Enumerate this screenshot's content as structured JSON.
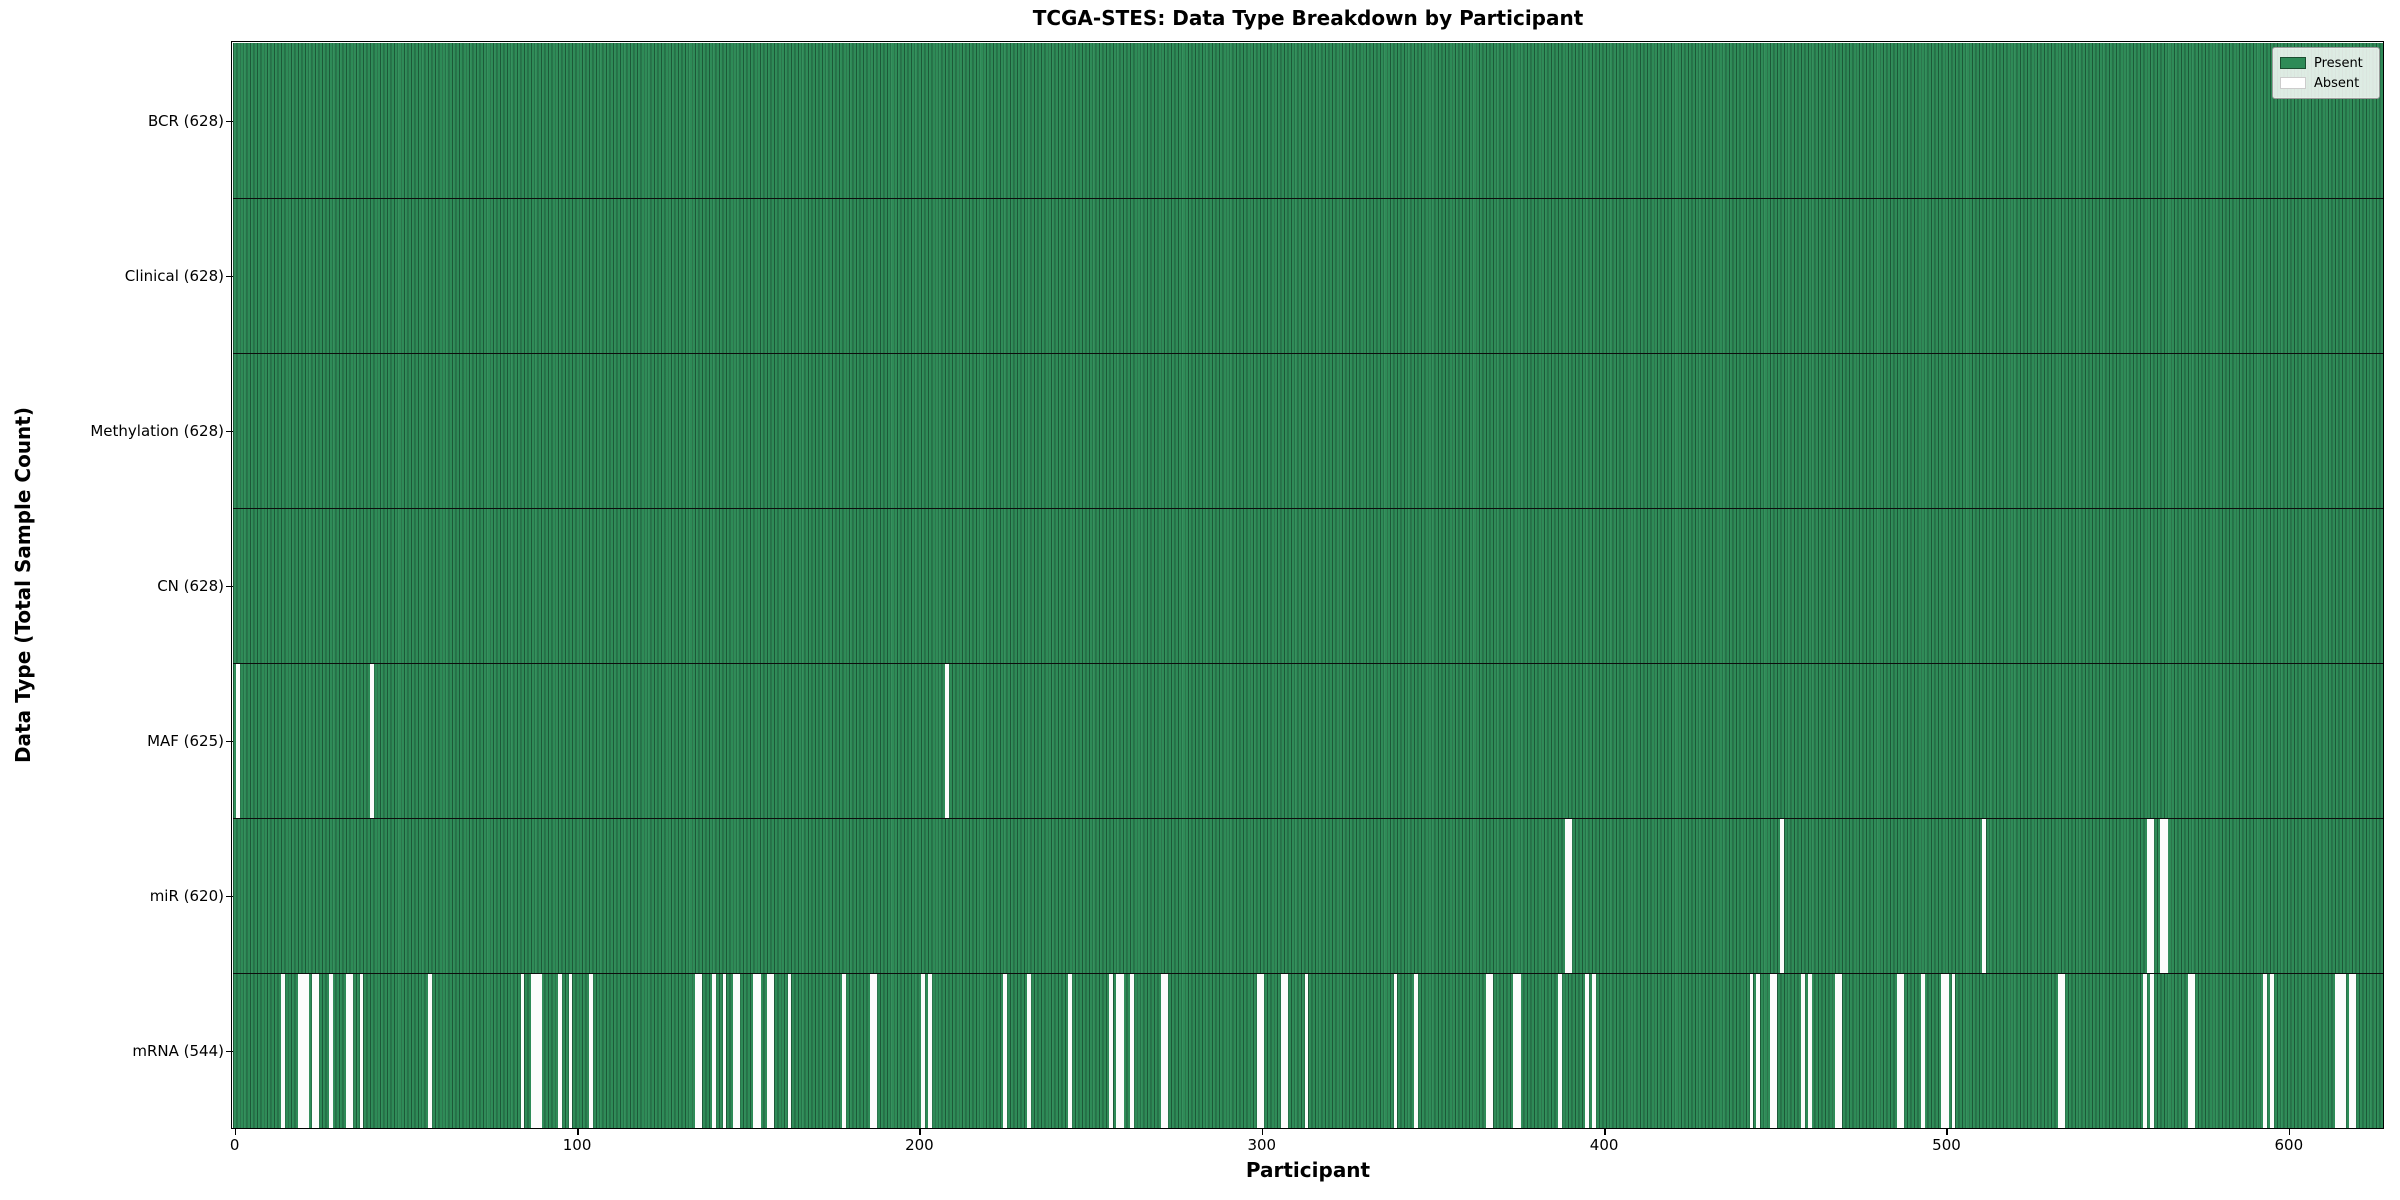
{
  "title": "TCGA-STES: Data Type Breakdown by Participant",
  "chart_data": {
    "type": "heatmap",
    "title": "TCGA-STES: Data Type Breakdown by Participant",
    "xlabel": "Participant",
    "ylabel": "Data Type (Total Sample Count)",
    "x_ticks": [
      0,
      100,
      200,
      300,
      400,
      500,
      600
    ],
    "x_range": [
      0,
      628
    ],
    "n_participants": 628,
    "grid": false,
    "legend_position": "upper right",
    "legend": [
      {
        "label": "Present",
        "color": "#2e8b57",
        "edge": "#1b4d30"
      },
      {
        "label": "Absent",
        "color": "#ffffff",
        "edge": "#cccccc"
      }
    ],
    "colors": {
      "present": "#2e8b57",
      "present_edge": "#1b4d30",
      "absent": "#ffffff",
      "row_divider": "#0d0d0d",
      "background": "#ffffff"
    },
    "rows": [
      {
        "label": "BCR (628)",
        "data_type": "BCR",
        "total": 628,
        "absent": []
      },
      {
        "label": "Clinical (628)",
        "data_type": "Clinical",
        "total": 628,
        "absent": []
      },
      {
        "label": "Methylation (628)",
        "data_type": "Methylation",
        "total": 628,
        "absent": []
      },
      {
        "label": "CN (628)",
        "data_type": "CN",
        "total": 628,
        "absent": []
      },
      {
        "label": "MAF (625)",
        "data_type": "MAF",
        "total": 625,
        "absent": [
          1,
          40,
          208
        ]
      },
      {
        "label": "miR (620)",
        "data_type": "miR",
        "total": 620,
        "absent": [
          389,
          390,
          452,
          511,
          559,
          560,
          563,
          564
        ]
      },
      {
        "label": "mRNA (544)",
        "data_type": "mRNA",
        "total": 544,
        "absent": [
          14,
          19,
          20,
          21,
          23,
          24,
          28,
          33,
          34,
          37,
          57,
          84,
          87,
          88,
          89,
          95,
          98,
          104,
          135,
          136,
          140,
          143,
          146,
          147,
          152,
          153,
          156,
          157,
          162,
          178,
          186,
          187,
          201,
          203,
          225,
          232,
          244,
          256,
          258,
          259,
          262,
          271,
          272,
          299,
          300,
          306,
          307,
          313,
          339,
          345,
          366,
          367,
          374,
          375,
          387,
          395,
          397,
          443,
          445,
          449,
          450,
          458,
          460,
          468,
          469,
          486,
          487,
          493,
          499,
          500,
          502,
          533,
          534,
          558,
          560,
          571,
          572,
          593,
          595,
          614,
          615,
          616,
          618,
          619
        ]
      }
    ]
  }
}
